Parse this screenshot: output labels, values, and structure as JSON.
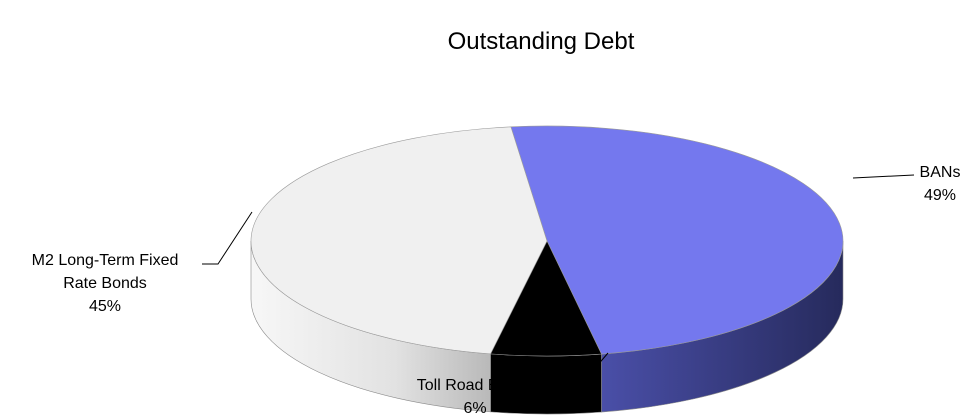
{
  "chart_data": {
    "type": "pie",
    "title": "Outstanding Debt",
    "three_d": true,
    "slices": [
      {
        "name": "BANs",
        "value": 49,
        "label": "49%",
        "color": "#7478EE"
      },
      {
        "name": "Toll Road Bonds",
        "value": 6,
        "label": "6%",
        "color": "#000000"
      },
      {
        "name": "M2 Long-Term Fixed Rate Bonds",
        "label_lines": [
          "M2 Long-Term Fixed",
          "Rate Bonds"
        ],
        "value": 45,
        "label": "45%",
        "color": "#F0F0F0"
      }
    ],
    "legend": "none"
  }
}
